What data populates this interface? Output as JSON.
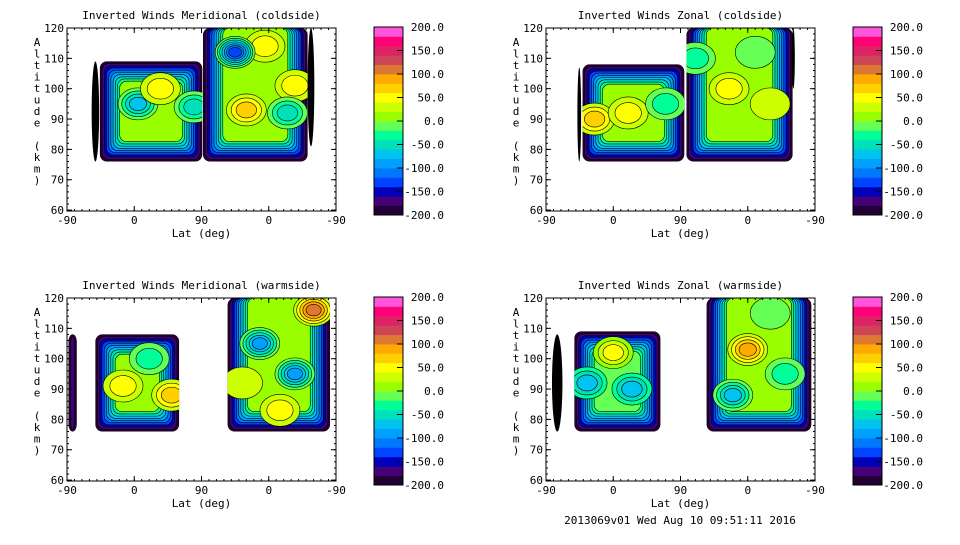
{
  "footer": "2013069v01 Wed Aug 10 09:51:11 2016",
  "colorbar": {
    "min": -200,
    "max": 200,
    "step": 20,
    "tick_labels": [
      "200.0",
      "150.0",
      "100.0",
      "50.0",
      "0.0",
      "-50.0",
      "-100.0",
      "-150.0",
      "-200.0"
    ],
    "colors": [
      "#220033",
      "#440077",
      "#0000bb",
      "#0044ff",
      "#0077ff",
      "#00a0ff",
      "#00c4ee",
      "#00e0bb",
      "#00ff99",
      "#66ff55",
      "#99ff00",
      "#ccff00",
      "#ffff00",
      "#ffd000",
      "#ffaa00",
      "#dd7733",
      "#cc4455",
      "#dd2266",
      "#ff0077",
      "#ff55dd"
    ]
  },
  "chart_data": [
    {
      "type": "heatmap",
      "title": "Inverted Winds Meridional (coldside)",
      "xlabel": "Lat (deg)",
      "ylabel": "Altitude (km)",
      "x_tick_labels": [
        "-90",
        "0",
        "90",
        "0",
        "-90"
      ],
      "y_ticks": [
        60,
        70,
        80,
        90,
        100,
        110,
        120
      ],
      "ylim": [
        59.7,
        120
      ],
      "regions": [
        {
          "x": [
            33,
            43
          ],
          "alt": [
            76,
            109
          ],
          "kind": "dense"
        },
        {
          "x": [
            44,
            181
          ],
          "alt": [
            76,
            109
          ],
          "value": 5
        },
        {
          "x": [
            182,
            322
          ],
          "alt": [
            76,
            120
          ],
          "value": 0
        },
        {
          "x": [
            322,
            331
          ],
          "alt": [
            81,
            120
          ],
          "kind": "dense"
        }
      ],
      "features": [
        {
          "x": 95,
          "alt": 95,
          "value": -80
        },
        {
          "x": 125,
          "alt": 100,
          "value": 50
        },
        {
          "x": 170,
          "alt": 94,
          "value": -60
        },
        {
          "x": 240,
          "alt": 93,
          "value": 60
        },
        {
          "x": 265,
          "alt": 114,
          "value": 40
        },
        {
          "x": 225,
          "alt": 112,
          "value": -140
        },
        {
          "x": 305,
          "alt": 101,
          "value": 50
        },
        {
          "x": 295,
          "alt": 92,
          "value": -60
        }
      ]
    },
    {
      "type": "heatmap",
      "title": "Inverted Winds Zonal (coldside)",
      "xlabel": "Lat (deg)",
      "ylabel": "Altitude (km)",
      "x_tick_labels": [
        "-90",
        "0",
        "90",
        "0",
        "-90"
      ],
      "y_ticks": [
        60,
        70,
        80,
        90,
        100,
        110,
        120
      ],
      "ylim": [
        59.7,
        120
      ],
      "regions": [
        {
          "x": [
            42,
            47
          ],
          "alt": [
            76,
            107
          ],
          "kind": "dense"
        },
        {
          "x": [
            49,
            185
          ],
          "alt": [
            76,
            108
          ],
          "value": 0
        },
        {
          "x": [
            188,
            330
          ],
          "alt": [
            76,
            120
          ],
          "value": 0
        },
        {
          "x": [
            329,
            333
          ],
          "alt": [
            100,
            120
          ],
          "kind": "dense"
        }
      ],
      "features": [
        {
          "x": 65,
          "alt": 90,
          "value": 70
        },
        {
          "x": 110,
          "alt": 92,
          "value": 50
        },
        {
          "x": 160,
          "alt": 95,
          "value": -50
        },
        {
          "x": 245,
          "alt": 100,
          "value": 40
        },
        {
          "x": 200,
          "alt": 110,
          "value": -40
        },
        {
          "x": 300,
          "alt": 95,
          "value": 30
        },
        {
          "x": 280,
          "alt": 112,
          "value": -30
        }
      ]
    },
    {
      "type": "heatmap",
      "title": "Inverted Winds Meridional (warmside)",
      "xlabel": "Lat (deg)",
      "ylabel": "Altitude (km)",
      "x_tick_labels": [
        "-90",
        "0",
        "90",
        "0",
        "-90"
      ],
      "y_ticks": [
        60,
        70,
        80,
        90,
        100,
        110,
        120
      ],
      "ylim": [
        59.7,
        120
      ],
      "regions": [
        {
          "x": [
            2,
            13
          ],
          "alt": [
            76,
            108
          ],
          "value": -40
        },
        {
          "x": [
            38,
            150
          ],
          "alt": [
            76,
            108
          ],
          "value": 0
        },
        {
          "x": [
            215,
            352
          ],
          "alt": [
            76,
            120
          ],
          "value": 10
        }
      ],
      "features": [
        {
          "x": 75,
          "alt": 91,
          "value": 50
        },
        {
          "x": 140,
          "alt": 88,
          "value": 60
        },
        {
          "x": 110,
          "alt": 100,
          "value": -40
        },
        {
          "x": 330,
          "alt": 116,
          "value": 120
        },
        {
          "x": 258,
          "alt": 105,
          "value": -90
        },
        {
          "x": 305,
          "alt": 95,
          "value": -90
        },
        {
          "x": 285,
          "alt": 83,
          "value": 60
        },
        {
          "x": 235,
          "alt": 92,
          "value": 40
        }
      ]
    },
    {
      "type": "heatmap",
      "title": "Inverted Winds Zonal (warmside)",
      "xlabel": "Lat (deg)",
      "ylabel": "Altitude (km)",
      "x_tick_labels": [
        "-90",
        "0",
        "90",
        "0",
        "-90"
      ],
      "y_ticks": [
        60,
        70,
        80,
        90,
        100,
        110,
        120
      ],
      "ylim": [
        59.7,
        120
      ],
      "regions": [
        {
          "x": [
            8,
            22
          ],
          "alt": [
            76,
            108
          ],
          "kind": "dense"
        },
        {
          "x": [
            38,
            153
          ],
          "alt": [
            76,
            109
          ],
          "value": -10
        },
        {
          "x": [
            215,
            355
          ],
          "alt": [
            76,
            120
          ],
          "value": 0
        }
      ],
      "features": [
        {
          "x": 90,
          "alt": 102,
          "value": 60
        },
        {
          "x": 55,
          "alt": 92,
          "value": -80
        },
        {
          "x": 115,
          "alt": 90,
          "value": -70
        },
        {
          "x": 270,
          "alt": 103,
          "value": 80
        },
        {
          "x": 250,
          "alt": 88,
          "value": -80
        },
        {
          "x": 320,
          "alt": 95,
          "value": -40
        },
        {
          "x": 300,
          "alt": 115,
          "value": -20
        }
      ]
    }
  ]
}
